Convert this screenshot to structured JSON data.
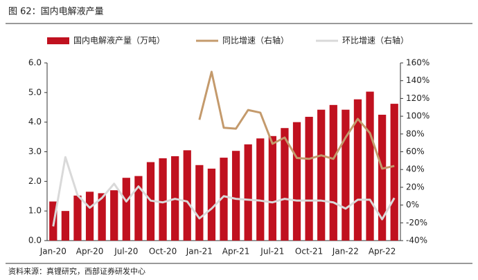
{
  "chart_data": {
    "type": "bar",
    "title": "图 62：国内电解液产量",
    "source": "资料来源：真锂研究，西部证券研发中心",
    "categories": [
      "Jan-20",
      null,
      null,
      "Apr-20",
      null,
      null,
      "Jul-20",
      null,
      null,
      "Oct-20",
      null,
      null,
      "Jan-21",
      null,
      null,
      "Apr-21",
      null,
      null,
      "Jul-21",
      null,
      null,
      "Oct-21",
      null,
      null,
      "Jan-22",
      null,
      null,
      "Apr-22",
      null
    ],
    "series": [
      {
        "name": "国内电解液产量（万吨）",
        "color": "#c0111f",
        "values": [
          1.32,
          1.0,
          1.52,
          1.65,
          1.6,
          1.7,
          2.12,
          2.18,
          2.65,
          2.78,
          2.85,
          3.05,
          2.55,
          2.43,
          2.8,
          3.03,
          3.25,
          3.45,
          3.53,
          3.8,
          4.0,
          4.18,
          4.42,
          4.58,
          4.42,
          4.77,
          5.03,
          4.25,
          4.62
        ]
      },
      {
        "name": "同比增速（右轴）",
        "color": "#c49a6c",
        "axis": "y2",
        "values": [
          null,
          null,
          null,
          null,
          null,
          null,
          null,
          null,
          null,
          null,
          null,
          null,
          96,
          150,
          87,
          86,
          107,
          104,
          69,
          76,
          53,
          52,
          56,
          52,
          76,
          97,
          81,
          41,
          44
        ]
      },
      {
        "name": "环比增速（右轴）",
        "color": "#d9d9d9",
        "axis": "y2",
        "values": [
          -24,
          54,
          11,
          -3,
          8,
          24,
          4,
          21,
          5,
          3,
          7,
          4,
          -15,
          -4,
          10,
          7,
          6,
          5,
          3,
          7,
          5,
          5,
          5,
          3,
          -4,
          6,
          6,
          -16,
          8
        ]
      }
    ],
    "ylim": [
      0,
      6
    ],
    "yticks": [
      {
        "value": 0,
        "label": "0.0"
      },
      {
        "value": 1,
        "label": "1.0"
      },
      {
        "value": 2,
        "label": "2.0"
      },
      {
        "value": 3,
        "label": "3.0"
      },
      {
        "value": 4,
        "label": "4.0"
      },
      {
        "value": 5,
        "label": "5.0"
      },
      {
        "value": 6,
        "label": "6.0"
      }
    ],
    "y2lim": [
      -40,
      160
    ],
    "y2ticks": [
      {
        "value": -40,
        "label": "-40%"
      },
      {
        "value": -20,
        "label": "-20%"
      },
      {
        "value": 0,
        "label": "0%"
      },
      {
        "value": 20,
        "label": "20%"
      },
      {
        "value": 40,
        "label": "40%"
      },
      {
        "value": 60,
        "label": "60%"
      },
      {
        "value": 80,
        "label": "80%"
      },
      {
        "value": 100,
        "label": "100%"
      },
      {
        "value": 120,
        "label": "120%"
      },
      {
        "value": 140,
        "label": "140%"
      },
      {
        "value": 160,
        "label": "160%"
      }
    ],
    "grid": false
  }
}
